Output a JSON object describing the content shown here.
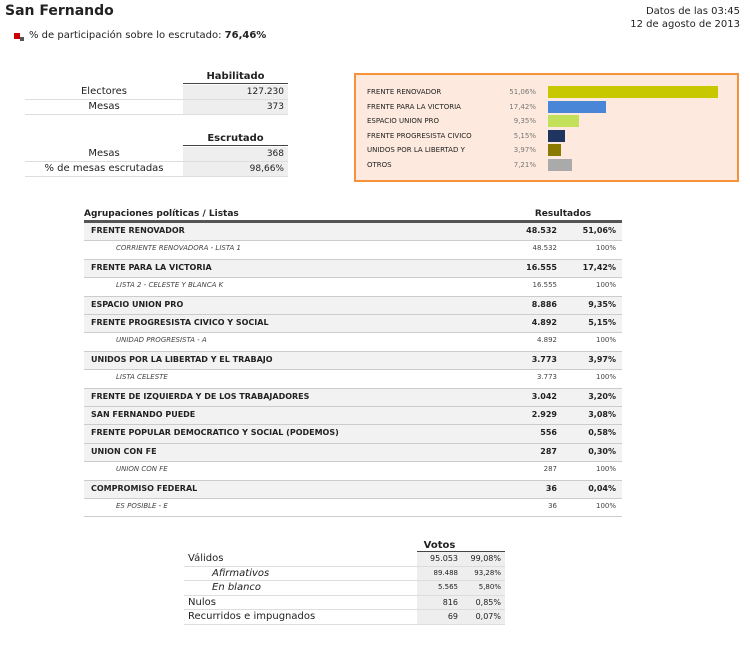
{
  "header": {
    "title": "San Fernando",
    "participation_label": "% de participación sobre lo escrutado:",
    "participation_value": "76,46%",
    "date_line1": "Datos de las 03:45",
    "date_line2": "12 de agosto de 2013"
  },
  "habilitado": {
    "title": "Habilitado",
    "rows": [
      [
        "Electores",
        "127.230"
      ],
      [
        "Mesas",
        "373"
      ]
    ]
  },
  "escrutado": {
    "title": "Escrutado",
    "rows": [
      [
        "Mesas",
        "368"
      ],
      [
        "% de mesas escrutadas",
        "98,66%"
      ]
    ]
  },
  "summary": {
    "type": "bar",
    "categories": [
      "FRENTE RENOVADOR",
      "FRENTE PARA LA VICTORIA",
      "ESPACIO UNION PRO",
      "FRENTE PROGRESISTA CIVICO",
      "UNIDOS POR LA LIBERTAD Y",
      "OTROS"
    ],
    "values": [
      51.06,
      17.42,
      9.35,
      5.15,
      3.97,
      7.21
    ],
    "value_labels": [
      "51,06%",
      "17,42%",
      "9,35%",
      "5,15%",
      "3,97%",
      "7,21%"
    ],
    "colors": [
      "#c8c800",
      "#4a86d8",
      "#c2e05a",
      "#1f3560",
      "#8a7a00",
      "#aaaaaa"
    ]
  },
  "results": {
    "header": [
      "Agrupaciones políticas / Listas",
      "Resultados"
    ],
    "rows": [
      {
        "level": "party",
        "name": "FRENTE RENOVADOR",
        "votes": "48.532",
        "pct": "51,06%"
      },
      {
        "level": "list",
        "name": "CORRIENTE RENOVADORA - LISTA 1",
        "votes": "48.532",
        "pct": "100%"
      },
      {
        "level": "party",
        "name": "FRENTE PARA LA VICTORIA",
        "votes": "16.555",
        "pct": "17,42%"
      },
      {
        "level": "list",
        "name": "LISTA 2 - CELESTE Y BLANCA K",
        "votes": "16.555",
        "pct": "100%"
      },
      {
        "level": "party",
        "name": "ESPACIO UNION PRO",
        "votes": "8.886",
        "pct": "9,35%"
      },
      {
        "level": "party",
        "name": "FRENTE PROGRESISTA CIVICO Y SOCIAL",
        "votes": "4.892",
        "pct": "5,15%"
      },
      {
        "level": "list",
        "name": "UNIDAD PROGRESISTA - A",
        "votes": "4.892",
        "pct": "100%"
      },
      {
        "level": "party",
        "name": "UNIDOS POR LA LIBERTAD Y EL TRABAJO",
        "votes": "3.773",
        "pct": "3,97%"
      },
      {
        "level": "list",
        "name": "LISTA CELESTE",
        "votes": "3.773",
        "pct": "100%"
      },
      {
        "level": "party",
        "name": "FRENTE DE IZQUIERDA Y DE LOS TRABAJADORES",
        "votes": "3.042",
        "pct": "3,20%"
      },
      {
        "level": "party",
        "name": "SAN FERNANDO PUEDE",
        "votes": "2.929",
        "pct": "3,08%"
      },
      {
        "level": "party",
        "name": "FRENTE POPULAR DEMOCRATICO Y SOCIAL (PODEMOS)",
        "votes": "556",
        "pct": "0,58%"
      },
      {
        "level": "party",
        "name": "UNION CON FE",
        "votes": "287",
        "pct": "0,30%"
      },
      {
        "level": "list",
        "name": "UNION CON FE",
        "votes": "287",
        "pct": "100%"
      },
      {
        "level": "party",
        "name": "COMPROMISO FEDERAL",
        "votes": "36",
        "pct": "0,04%"
      },
      {
        "level": "list",
        "name": "ES POSIBLE - E",
        "votes": "36",
        "pct": "100%"
      }
    ]
  },
  "votos": {
    "title": "Votos",
    "rows": [
      {
        "level": "main",
        "name": "Válidos",
        "votes": "95.053",
        "pct": "99,08%"
      },
      {
        "level": "sub",
        "name": "Afirmativos",
        "votes": "89.488",
        "pct": "93,28%"
      },
      {
        "level": "sub",
        "name": "En blanco",
        "votes": "5.565",
        "pct": "5,80%"
      },
      {
        "level": "main",
        "name": "Nulos",
        "votes": "816",
        "pct": "0,85%"
      },
      {
        "level": "main",
        "name": "Recurridos e impugnados",
        "votes": "69",
        "pct": "0,07%"
      }
    ]
  }
}
